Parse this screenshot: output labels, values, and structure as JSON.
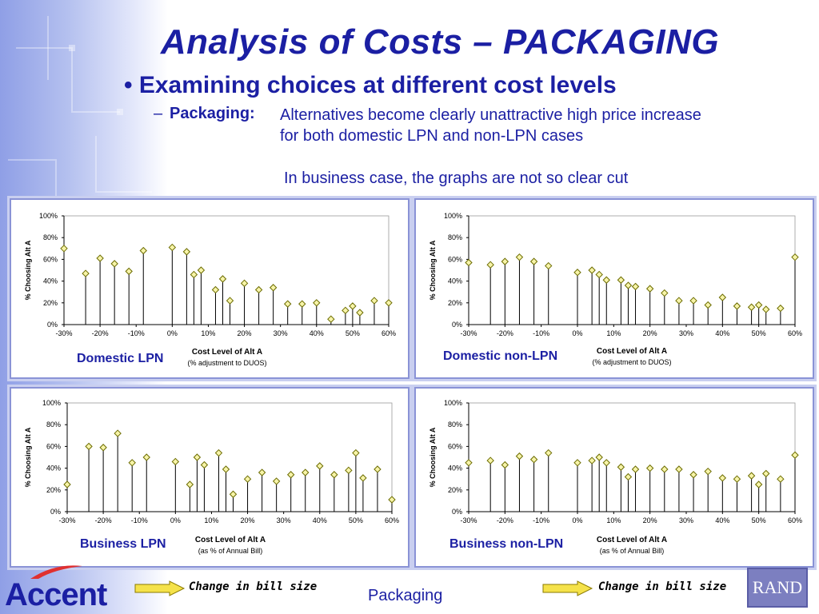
{
  "title": "Analysis of Costs – PACKAGING",
  "bullet": "Examining choices at different cost levels",
  "sub": {
    "dash": "–",
    "label": "Packaging:",
    "line1": "Alternatives become clearly unattractive high price increase",
    "line2": "for both domestic LPN and non-LPN cases"
  },
  "note": "In business case, the graphs are not so clear cut",
  "footer": "Packaging",
  "logo": {
    "text": "Accent",
    "rand": "RAND"
  },
  "arrows": [
    {
      "label": "Change in bill size",
      "color": "#f5e24a"
    },
    {
      "label": "Change in bill size",
      "color": "#f5e24a"
    }
  ],
  "colors": {
    "marker_fill": "#f7f4a8",
    "marker_stroke": "#6b6b00",
    "title": "#1b1fa3"
  },
  "chart_data": [
    {
      "type": "scatter",
      "panel_label": "Domestic LPN",
      "xlabel": "Cost Level of Alt A",
      "xlabel_sub": "(% adjustment to DUOS)",
      "ylabel": "% Choosing Alt A",
      "xlim": [
        -30,
        60
      ],
      "ylim": [
        0,
        100
      ],
      "x_ticks": [
        "-30%",
        "-20%",
        "-10%",
        "0%",
        "10%",
        "20%",
        "30%",
        "40%",
        "50%",
        "60%"
      ],
      "y_ticks": [
        "0%",
        "20%",
        "40%",
        "60%",
        "80%",
        "100%"
      ],
      "drop_lines": true,
      "points": [
        [
          -30,
          70
        ],
        [
          -24,
          47
        ],
        [
          -20,
          61
        ],
        [
          -16,
          56
        ],
        [
          -12,
          49
        ],
        [
          -8,
          68
        ],
        [
          0,
          71
        ],
        [
          4,
          67
        ],
        [
          6,
          46
        ],
        [
          8,
          50
        ],
        [
          12,
          32
        ],
        [
          14,
          42
        ],
        [
          16,
          22
        ],
        [
          20,
          38
        ],
        [
          24,
          32
        ],
        [
          28,
          34
        ],
        [
          32,
          19
        ],
        [
          36,
          19
        ],
        [
          40,
          20
        ],
        [
          44,
          5
        ],
        [
          48,
          13
        ],
        [
          50,
          17
        ],
        [
          52,
          11
        ],
        [
          56,
          22
        ],
        [
          60,
          20
        ]
      ]
    },
    {
      "type": "scatter",
      "panel_label": "Domestic non-LPN",
      "xlabel": "Cost Level of Alt A",
      "xlabel_sub": "(% adjustment to DUOS)",
      "ylabel": "% Choosing Alt A",
      "xlim": [
        -30,
        60
      ],
      "ylim": [
        0,
        100
      ],
      "x_ticks": [
        "-30%",
        "-20%",
        "-10%",
        "0%",
        "10%",
        "20%",
        "30%",
        "40%",
        "50%",
        "60%"
      ],
      "y_ticks": [
        "0%",
        "20%",
        "40%",
        "60%",
        "80%",
        "100%"
      ],
      "drop_lines": true,
      "points": [
        [
          -30,
          57
        ],
        [
          -24,
          55
        ],
        [
          -20,
          58
        ],
        [
          -16,
          62
        ],
        [
          -12,
          58
        ],
        [
          -8,
          54
        ],
        [
          0,
          48
        ],
        [
          4,
          50
        ],
        [
          6,
          46
        ],
        [
          8,
          41
        ],
        [
          12,
          41
        ],
        [
          14,
          36
        ],
        [
          16,
          35
        ],
        [
          20,
          33
        ],
        [
          24,
          29
        ],
        [
          28,
          22
        ],
        [
          32,
          22
        ],
        [
          36,
          18
        ],
        [
          40,
          25
        ],
        [
          44,
          17
        ],
        [
          48,
          16
        ],
        [
          50,
          18
        ],
        [
          52,
          14
        ],
        [
          56,
          15
        ],
        [
          60,
          62
        ]
      ]
    },
    {
      "type": "scatter",
      "panel_label": "Business LPN",
      "xlabel": "Cost Level of Alt A",
      "xlabel_sub": "(as % of Annual Bill)",
      "ylabel": "% Choosing Alt A",
      "xlim": [
        -30,
        60
      ],
      "ylim": [
        0,
        100
      ],
      "x_ticks": [
        "-30%",
        "-20%",
        "-10%",
        "0%",
        "10%",
        "20%",
        "30%",
        "40%",
        "50%",
        "60%"
      ],
      "y_ticks": [
        "0%",
        "20%",
        "40%",
        "60%",
        "80%",
        "100%"
      ],
      "drop_lines": true,
      "points": [
        [
          -30,
          25
        ],
        [
          -24,
          60
        ],
        [
          -20,
          59
        ],
        [
          -16,
          72
        ],
        [
          -12,
          45
        ],
        [
          -8,
          50
        ],
        [
          0,
          46
        ],
        [
          4,
          25
        ],
        [
          6,
          50
        ],
        [
          8,
          43
        ],
        [
          12,
          54
        ],
        [
          14,
          39
        ],
        [
          16,
          16
        ],
        [
          20,
          30
        ],
        [
          24,
          36
        ],
        [
          28,
          28
        ],
        [
          32,
          34
        ],
        [
          36,
          36
        ],
        [
          40,
          42
        ],
        [
          44,
          34
        ],
        [
          48,
          38
        ],
        [
          50,
          54
        ],
        [
          52,
          31
        ],
        [
          56,
          39
        ],
        [
          60,
          11
        ]
      ]
    },
    {
      "type": "scatter",
      "panel_label": "Business non-LPN",
      "xlabel": "Cost Level of Alt A",
      "xlabel_sub": "(as % of Annual Bill)",
      "ylabel": "% Choosing Alt A",
      "xlim": [
        -30,
        60
      ],
      "ylim": [
        0,
        100
      ],
      "x_ticks": [
        "-30%",
        "-20%",
        "-10%",
        "0%",
        "10%",
        "20%",
        "30%",
        "40%",
        "50%",
        "60%"
      ],
      "y_ticks": [
        "0%",
        "20%",
        "40%",
        "60%",
        "80%",
        "100%"
      ],
      "drop_lines": true,
      "points": [
        [
          -30,
          45
        ],
        [
          -24,
          47
        ],
        [
          -20,
          43
        ],
        [
          -16,
          51
        ],
        [
          -12,
          48
        ],
        [
          -8,
          54
        ],
        [
          0,
          45
        ],
        [
          4,
          47
        ],
        [
          6,
          50
        ],
        [
          8,
          45
        ],
        [
          12,
          41
        ],
        [
          14,
          32
        ],
        [
          16,
          39
        ],
        [
          20,
          40
        ],
        [
          24,
          39
        ],
        [
          28,
          39
        ],
        [
          32,
          34
        ],
        [
          36,
          37
        ],
        [
          40,
          31
        ],
        [
          44,
          30
        ],
        [
          48,
          33
        ],
        [
          50,
          25
        ],
        [
          52,
          35
        ],
        [
          56,
          30
        ],
        [
          60,
          52
        ]
      ]
    }
  ]
}
